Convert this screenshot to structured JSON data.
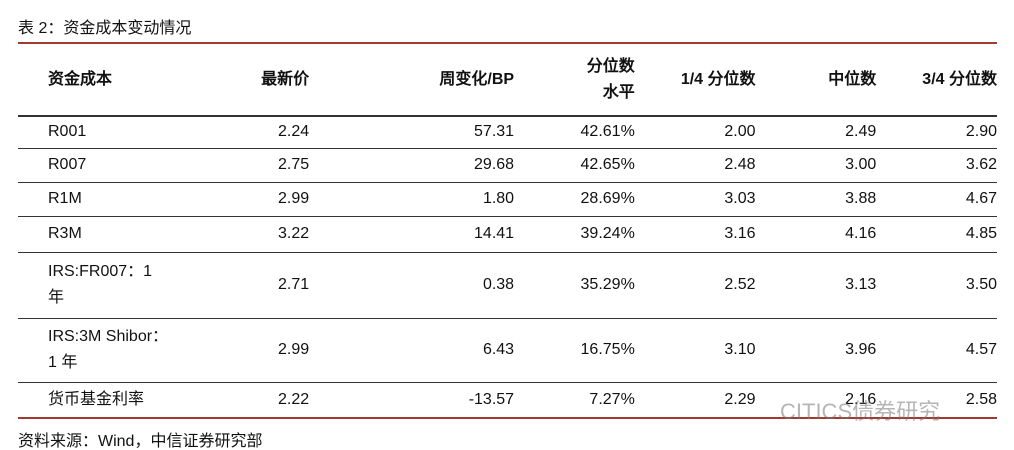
{
  "title": "表 2：资金成本变动情况",
  "table": {
    "header": [
      "资金成本",
      "最新价",
      "周变化/BP",
      "分位数\n水平",
      "1/4 分位数",
      "中位数",
      "3/4 分位数"
    ],
    "rows": [
      [
        "R001",
        "2.24",
        "57.31",
        "42.61%",
        "2.00",
        "2.49",
        "2.90"
      ],
      [
        "R007",
        "2.75",
        "29.68",
        "42.65%",
        "2.48",
        "3.00",
        "3.62"
      ],
      [
        "R1M",
        "2.99",
        "1.80",
        "28.69%",
        "3.03",
        "3.88",
        "4.67"
      ],
      [
        "R3M",
        "3.22",
        "14.41",
        "39.24%",
        "3.16",
        "4.16",
        "4.85"
      ],
      [
        "IRS:FR007：1 年",
        "2.71",
        "0.38",
        "35.29%",
        "2.52",
        "3.13",
        "3.50"
      ],
      [
        "IRS:3M Shibor：1 年",
        "2.99",
        "6.43",
        "16.75%",
        "3.10",
        "3.96",
        "4.57"
      ],
      [
        "货币基金利率",
        "2.22",
        "-13.57",
        "7.27%",
        "2.29",
        "2.16",
        "2.58"
      ]
    ]
  },
  "source": "资料来源：Wind，中信证券研究部",
  "watermark": "CITICS债券研究"
}
